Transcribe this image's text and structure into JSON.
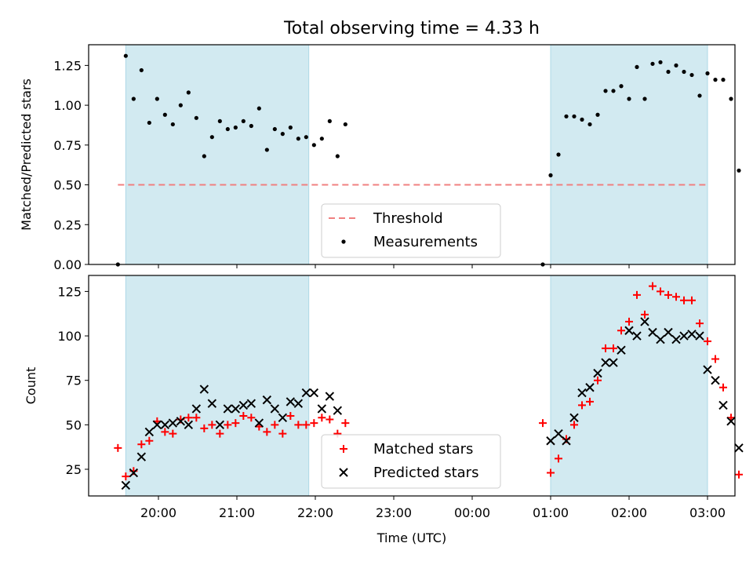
{
  "chart_data": {
    "type": "scatter",
    "title": "Total observing time = 4.33 h",
    "xlabel": "Time (UTC)",
    "x_tick_labels": [
      "20:00",
      "21:00",
      "22:00",
      "23:00",
      "00:00",
      "01:00",
      "02:00",
      "03:00"
    ],
    "panels": [
      {
        "id": "ratio",
        "ylabel": "Matched/Predicted stars",
        "ylim": [
          0,
          1.38
        ],
        "y_ticks": [
          0.0,
          0.25,
          0.5,
          0.75,
          1.0,
          1.25
        ],
        "y_tick_labels": [
          "0.00",
          "0.25",
          "0.50",
          "0.75",
          "1.00",
          "1.25"
        ],
        "legend": {
          "placement": "lower-center",
          "entries": [
            "Threshold",
            "Measurements"
          ]
        },
        "threshold": {
          "name": "Threshold",
          "value": 0.5,
          "x_start": "19:29",
          "x_end": "03:00",
          "color": "#f08080"
        },
        "series": [
          {
            "name": "Measurements",
            "marker": "dot",
            "color": "#000000",
            "points": [
              [
                "19:29",
                0.0
              ],
              [
                "19:35",
                1.31
              ],
              [
                "19:41",
                1.04
              ],
              [
                "19:47",
                1.22
              ],
              [
                "19:53",
                0.89
              ],
              [
                "19:59",
                1.04
              ],
              [
                "20:05",
                0.94
              ],
              [
                "20:11",
                0.88
              ],
              [
                "20:17",
                1.0
              ],
              [
                "20:23",
                1.08
              ],
              [
                "20:29",
                0.92
              ],
              [
                "20:35",
                0.68
              ],
              [
                "20:41",
                0.8
              ],
              [
                "20:47",
                0.9
              ],
              [
                "20:53",
                0.85
              ],
              [
                "20:59",
                0.86
              ],
              [
                "21:05",
                0.9
              ],
              [
                "21:11",
                0.87
              ],
              [
                "21:17",
                0.98
              ],
              [
                "21:23",
                0.72
              ],
              [
                "21:29",
                0.85
              ],
              [
                "21:35",
                0.82
              ],
              [
                "21:41",
                0.86
              ],
              [
                "21:47",
                0.79
              ],
              [
                "21:53",
                0.8
              ],
              [
                "21:59",
                0.75
              ],
              [
                "22:05",
                0.79
              ],
              [
                "22:11",
                0.9
              ],
              [
                "22:17",
                0.68
              ],
              [
                "22:23",
                0.88
              ],
              [
                "00:54",
                0.0
              ],
              [
                "01:00",
                0.56
              ],
              [
                "01:06",
                0.69
              ],
              [
                "01:12",
                0.93
              ],
              [
                "01:18",
                0.93
              ],
              [
                "01:24",
                0.91
              ],
              [
                "01:30",
                0.88
              ],
              [
                "01:36",
                0.94
              ],
              [
                "01:42",
                1.09
              ],
              [
                "01:48",
                1.09
              ],
              [
                "01:54",
                1.12
              ],
              [
                "02:00",
                1.04
              ],
              [
                "02:06",
                1.24
              ],
              [
                "02:12",
                1.04
              ],
              [
                "02:18",
                1.26
              ],
              [
                "02:24",
                1.27
              ],
              [
                "02:30",
                1.21
              ],
              [
                "02:36",
                1.25
              ],
              [
                "02:42",
                1.21
              ],
              [
                "02:48",
                1.19
              ],
              [
                "02:54",
                1.06
              ],
              [
                "03:00",
                1.2
              ],
              [
                "03:06",
                1.16
              ],
              [
                "03:12",
                1.16
              ],
              [
                "03:18",
                1.04
              ],
              [
                "03:24",
                0.59
              ]
            ]
          }
        ],
        "shaded_intervals": [
          [
            "19:35",
            "21:55"
          ],
          [
            "01:00",
            "03:00"
          ]
        ]
      },
      {
        "id": "count",
        "ylabel": "Count",
        "ylim": [
          10,
          134
        ],
        "y_ticks": [
          25,
          50,
          75,
          100,
          125
        ],
        "y_tick_labels": [
          "25",
          "50",
          "75",
          "100",
          "125"
        ],
        "legend": {
          "placement": "lower-center",
          "entries": [
            "Matched stars",
            "Predicted stars"
          ]
        },
        "series": [
          {
            "name": "Matched stars",
            "marker": "plus",
            "color": "#ff0000",
            "points": [
              [
                "19:29",
                37
              ],
              [
                "19:35",
                21
              ],
              [
                "19:41",
                24
              ],
              [
                "19:47",
                39
              ],
              [
                "19:53",
                41
              ],
              [
                "19:59",
                52
              ],
              [
                "20:05",
                46
              ],
              [
                "20:11",
                45
              ],
              [
                "20:17",
                53
              ],
              [
                "20:23",
                54
              ],
              [
                "20:29",
                54
              ],
              [
                "20:35",
                48
              ],
              [
                "20:41",
                50
              ],
              [
                "20:47",
                45
              ],
              [
                "20:53",
                50
              ],
              [
                "20:59",
                51
              ],
              [
                "21:05",
                55
              ],
              [
                "21:11",
                54
              ],
              [
                "21:17",
                49
              ],
              [
                "21:23",
                46
              ],
              [
                "21:29",
                50
              ],
              [
                "21:35",
                45
              ],
              [
                "21:41",
                55
              ],
              [
                "21:47",
                50
              ],
              [
                "21:53",
                50
              ],
              [
                "21:59",
                51
              ],
              [
                "22:05",
                54
              ],
              [
                "22:11",
                53
              ],
              [
                "22:17",
                45
              ],
              [
                "22:23",
                51
              ],
              [
                "00:54",
                51
              ],
              [
                "01:00",
                23
              ],
              [
                "01:06",
                31
              ],
              [
                "01:12",
                42
              ],
              [
                "01:18",
                50
              ],
              [
                "01:24",
                61
              ],
              [
                "01:30",
                63
              ],
              [
                "01:36",
                75
              ],
              [
                "01:42",
                93
              ],
              [
                "01:48",
                93
              ],
              [
                "01:54",
                103
              ],
              [
                "02:00",
                108
              ],
              [
                "02:06",
                123
              ],
              [
                "02:12",
                112
              ],
              [
                "02:18",
                128
              ],
              [
                "02:24",
                125
              ],
              [
                "02:30",
                123
              ],
              [
                "02:36",
                122
              ],
              [
                "02:42",
                120
              ],
              [
                "02:48",
                120
              ],
              [
                "02:54",
                107
              ],
              [
                "03:00",
                97
              ],
              [
                "03:06",
                87
              ],
              [
                "03:12",
                71
              ],
              [
                "03:18",
                54
              ],
              [
                "03:24",
                22
              ]
            ]
          },
          {
            "name": "Predicted stars",
            "marker": "x",
            "color": "#000000",
            "points": [
              [
                "19:35",
                16
              ],
              [
                "19:41",
                23
              ],
              [
                "19:47",
                32
              ],
              [
                "19:53",
                46
              ],
              [
                "19:59",
                50
              ],
              [
                "20:05",
                50
              ],
              [
                "20:11",
                51
              ],
              [
                "20:17",
                52
              ],
              [
                "20:23",
                50
              ],
              [
                "20:29",
                59
              ],
              [
                "20:35",
                70
              ],
              [
                "20:41",
                62
              ],
              [
                "20:47",
                50
              ],
              [
                "20:53",
                59
              ],
              [
                "20:59",
                59
              ],
              [
                "21:05",
                61
              ],
              [
                "21:11",
                62
              ],
              [
                "21:17",
                51
              ],
              [
                "21:23",
                64
              ],
              [
                "21:29",
                59
              ],
              [
                "21:35",
                54
              ],
              [
                "21:41",
                63
              ],
              [
                "21:47",
                62
              ],
              [
                "21:53",
                68
              ],
              [
                "21:59",
                68
              ],
              [
                "22:05",
                59
              ],
              [
                "22:11",
                66
              ],
              [
                "22:17",
                58
              ],
              [
                "01:00",
                41
              ],
              [
                "01:06",
                45
              ],
              [
                "01:12",
                41
              ],
              [
                "01:18",
                54
              ],
              [
                "01:24",
                68
              ],
              [
                "01:30",
                71
              ],
              [
                "01:36",
                79
              ],
              [
                "01:42",
                85
              ],
              [
                "01:48",
                85
              ],
              [
                "01:54",
                92
              ],
              [
                "02:00",
                103
              ],
              [
                "02:06",
                100
              ],
              [
                "02:12",
                108
              ],
              [
                "02:18",
                102
              ],
              [
                "02:24",
                98
              ],
              [
                "02:30",
                102
              ],
              [
                "02:36",
                98
              ],
              [
                "02:42",
                100
              ],
              [
                "02:48",
                101
              ],
              [
                "02:54",
                100
              ],
              [
                "03:00",
                81
              ],
              [
                "03:06",
                75
              ],
              [
                "03:12",
                61
              ],
              [
                "03:18",
                52
              ],
              [
                "03:24",
                37
              ]
            ]
          }
        ],
        "shaded_intervals": [
          [
            "19:35",
            "21:55"
          ],
          [
            "01:00",
            "03:00"
          ]
        ]
      }
    ],
    "colors": {
      "shade": "#add8e6",
      "threshold": "#f08080",
      "matched": "#ff0000",
      "predicted": "#000000"
    },
    "grid": false
  }
}
